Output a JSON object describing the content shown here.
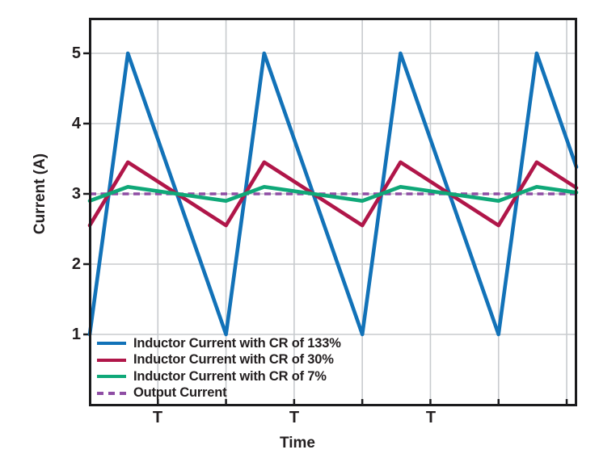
{
  "axes": {
    "ylabel": "Current (A)",
    "xlabel": "Time",
    "y_tick_labels": [
      "5",
      "4",
      "3",
      "2",
      "1"
    ],
    "y_ticks": [
      5,
      4,
      3,
      2,
      1
    ],
    "x_tick_labels": [
      "T",
      "T",
      "T"
    ],
    "x_tick_positions_T": [
      0.5,
      1.5,
      2.5
    ],
    "x_gridlines_T": [
      0.5,
      1,
      1.5,
      2,
      2.5,
      3,
      3.5
    ],
    "x_range_T": [
      0,
      3.571
    ],
    "y_range": [
      0,
      5.5
    ],
    "grid_color": "#C8CBCE",
    "border_color": "#1B1B1D",
    "tick_color": "#1B1B1D"
  },
  "chart_data": {
    "type": "line",
    "title": "",
    "xlabel": "Time",
    "ylabel": "Current (A)",
    "x_unit": "switching period T",
    "x_range": [
      0,
      3.571
    ],
    "ylim": [
      0,
      5.5
    ],
    "grid": true,
    "legend_position": "lower-left inside plot",
    "waveform_shape": "triangular; minima at integer multiples of T; peak occurs 28% into each period",
    "duty_rise_fraction": 0.28,
    "series": [
      {
        "name": "Inductor Current with CR of 133%",
        "color": "#1272B8",
        "style": "solid",
        "min": 1.0,
        "max": 5.0,
        "average": 3.0
      },
      {
        "name": "Inductor Current with CR of 30%",
        "color": "#B01649",
        "style": "solid",
        "min": 2.55,
        "max": 3.45,
        "average": 3.0
      },
      {
        "name": "Inductor Current with CR of 7%",
        "color": "#0FA878",
        "style": "solid",
        "min": 2.9,
        "max": 3.1,
        "average": 3.0
      },
      {
        "name": "Output Current",
        "color": "#8E4DA4",
        "style": "dashed",
        "value": 3.0
      }
    ]
  }
}
